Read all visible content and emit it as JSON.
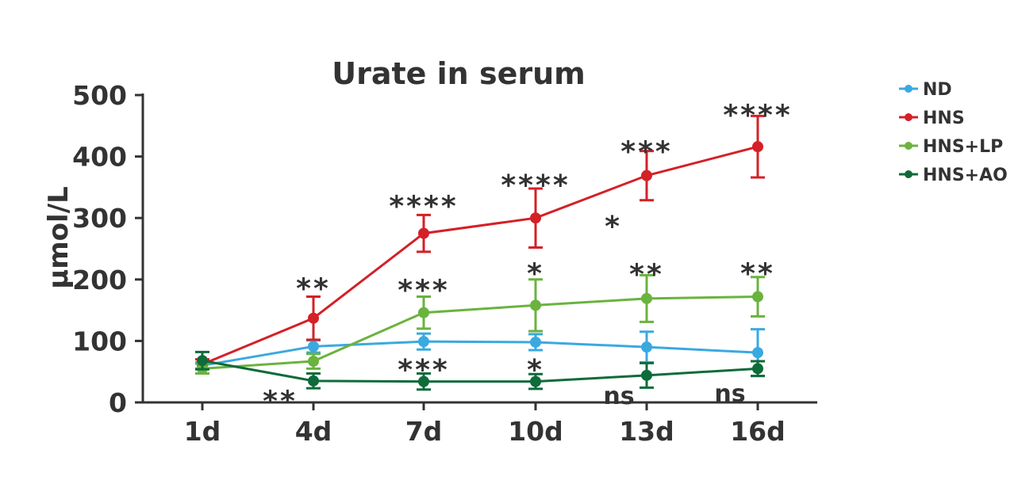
{
  "chart_data": {
    "type": "line",
    "title": "Urate in serum",
    "xlabel": "",
    "ylabel": "μmol/L",
    "ylim": [
      0,
      500
    ],
    "yticks": [
      0,
      100,
      200,
      300,
      400,
      500
    ],
    "categories": [
      "1d",
      "4d",
      "7d",
      "10d",
      "13d",
      "16d"
    ],
    "legend_position": "top-right",
    "grid": false,
    "series": [
      {
        "name": "ND",
        "color": "#3aa9e0",
        "values": [
          60,
          91,
          99,
          98,
          90,
          81
        ],
        "err": [
          5,
          10,
          13,
          13,
          25,
          38
        ]
      },
      {
        "name": "HNS",
        "color": "#d42027",
        "values": [
          62,
          137,
          275,
          300,
          369,
          416
        ],
        "err": [
          8,
          35,
          30,
          48,
          40,
          50
        ]
      },
      {
        "name": "HNS+LP",
        "color": "#6ab33e",
        "values": [
          55,
          67,
          146,
          158,
          169,
          172
        ],
        "err": [
          8,
          12,
          26,
          42,
          38,
          32
        ]
      },
      {
        "name": "HNS+AO",
        "color": "#0e6b3a",
        "values": [
          68,
          35,
          34,
          34,
          44,
          55
        ],
        "err": [
          14,
          12,
          13,
          12,
          20,
          12
        ]
      }
    ],
    "annotations": [
      {
        "text": "**",
        "x": "4d",
        "y": 198
      },
      {
        "text": "****",
        "x": "7d",
        "y": 332
      },
      {
        "text": "****",
        "x": "10d",
        "y": 366
      },
      {
        "text": "***",
        "x": "13d",
        "y": 421
      },
      {
        "text": "*",
        "x": "13d",
        "y": 299,
        "dx": -0.3
      },
      {
        "text": "****",
        "x": "16d",
        "y": 480
      },
      {
        "text": "***",
        "x": "7d",
        "y": 195
      },
      {
        "text": "*",
        "x": "10d",
        "y": 222
      },
      {
        "text": "**",
        "x": "13d",
        "y": 221
      },
      {
        "text": "**",
        "x": "16d",
        "y": 222
      },
      {
        "text": "**",
        "x": "4d",
        "y": 15,
        "dx": -0.3
      },
      {
        "text": "***",
        "x": "7d",
        "y": 66
      },
      {
        "text": "*",
        "x": "10d",
        "y": 66
      },
      {
        "text": "ns",
        "x": "13d",
        "y": 10,
        "dx": -0.25,
        "kind": "word"
      },
      {
        "text": "ns",
        "x": "16d",
        "y": 14,
        "dx": -0.25,
        "kind": "word"
      }
    ]
  }
}
